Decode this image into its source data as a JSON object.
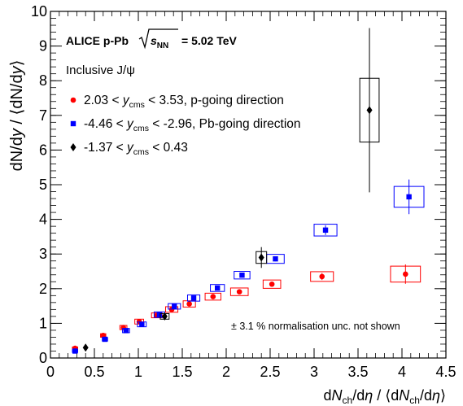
{
  "chart_data": {
    "type": "scatter",
    "title": "",
    "xlabel": "dN_ch/dη / ⟨dN_ch/dη⟩",
    "ylabel": "dN/dy / ⟨dN/dy⟩",
    "xlim": [
      0,
      4.5
    ],
    "ylim": [
      0,
      10
    ],
    "grid": false,
    "x_ticks": [
      "0",
      "0.5",
      "1",
      "1.5",
      "2",
      "2.5",
      "3",
      "3.5",
      "4",
      "4.5"
    ],
    "y_ticks": [
      "0",
      "1",
      "2",
      "3",
      "4",
      "5",
      "6",
      "7",
      "8",
      "9",
      "10"
    ],
    "legend_position": "top-left",
    "series": [
      {
        "name": "2.03 < y_cms < 3.53, p-going direction",
        "color": "#ff0000",
        "marker": "circle",
        "points": [
          {
            "x": 0.28,
            "y": 0.28,
            "stat": 0.05,
            "sx": 0.03,
            "sy": 0.04
          },
          {
            "x": 0.6,
            "y": 0.65,
            "stat": 0.04,
            "sx": 0.03,
            "sy": 0.05
          },
          {
            "x": 0.83,
            "y": 0.88,
            "stat": 0.03,
            "sx": 0.04,
            "sy": 0.06
          },
          {
            "x": 1.01,
            "y": 1.05,
            "stat": 0.03,
            "sx": 0.05,
            "sy": 0.07
          },
          {
            "x": 1.21,
            "y": 1.23,
            "stat": 0.03,
            "sx": 0.06,
            "sy": 0.07
          },
          {
            "x": 1.38,
            "y": 1.4,
            "stat": 0.03,
            "sx": 0.07,
            "sy": 0.08
          },
          {
            "x": 1.58,
            "y": 1.56,
            "stat": 0.03,
            "sx": 0.07,
            "sy": 0.09
          },
          {
            "x": 1.85,
            "y": 1.77,
            "stat": 0.03,
            "sx": 0.09,
            "sy": 0.1
          },
          {
            "x": 2.15,
            "y": 1.91,
            "stat": 0.04,
            "sx": 0.1,
            "sy": 0.11
          },
          {
            "x": 2.52,
            "y": 2.13,
            "stat": 0.05,
            "sx": 0.1,
            "sy": 0.12
          },
          {
            "x": 3.09,
            "y": 2.35,
            "stat": 0.1,
            "sx": 0.13,
            "sy": 0.14
          },
          {
            "x": 4.04,
            "y": 2.42,
            "stat": 0.28,
            "sx": 0.17,
            "sy": 0.23
          }
        ]
      },
      {
        "name": "-4.46 < y_cms < -2.96, Pb-going direction",
        "color": "#0000ff",
        "marker": "square",
        "points": [
          {
            "x": 0.28,
            "y": 0.2,
            "stat": 0.04,
            "sx": 0.03,
            "sy": 0.04
          },
          {
            "x": 0.62,
            "y": 0.54,
            "stat": 0.04,
            "sx": 0.03,
            "sy": 0.05
          },
          {
            "x": 0.86,
            "y": 0.79,
            "stat": 0.03,
            "sx": 0.04,
            "sy": 0.06
          },
          {
            "x": 1.04,
            "y": 0.97,
            "stat": 0.03,
            "sx": 0.05,
            "sy": 0.07
          },
          {
            "x": 1.24,
            "y": 1.25,
            "stat": 0.03,
            "sx": 0.06,
            "sy": 0.08
          },
          {
            "x": 1.41,
            "y": 1.49,
            "stat": 0.03,
            "sx": 0.07,
            "sy": 0.08
          },
          {
            "x": 1.63,
            "y": 1.73,
            "stat": 0.03,
            "sx": 0.07,
            "sy": 0.09
          },
          {
            "x": 1.9,
            "y": 2.02,
            "stat": 0.04,
            "sx": 0.08,
            "sy": 0.1
          },
          {
            "x": 2.18,
            "y": 2.39,
            "stat": 0.05,
            "sx": 0.09,
            "sy": 0.11
          },
          {
            "x": 2.56,
            "y": 2.86,
            "stat": 0.07,
            "sx": 0.1,
            "sy": 0.13
          },
          {
            "x": 3.13,
            "y": 3.69,
            "stat": 0.14,
            "sx": 0.13,
            "sy": 0.17
          },
          {
            "x": 4.08,
            "y": 4.65,
            "stat": 0.5,
            "sx": 0.17,
            "sy": 0.3
          }
        ]
      },
      {
        "name": "-1.37 < y_cms < 0.43",
        "color": "#000000",
        "marker": "diamond",
        "points": [
          {
            "x": 0.4,
            "y": 0.3,
            "stat": 0.1,
            "sx": 0.0,
            "sy": 0.0
          },
          {
            "x": 1.3,
            "y": 1.2,
            "stat": 0.1,
            "sx": 0.05,
            "sy": 0.08
          },
          {
            "x": 2.4,
            "y": 2.9,
            "stat": 0.3,
            "sx": 0.06,
            "sy": 0.17
          },
          {
            "x": 3.63,
            "y": 7.15,
            "stat": 2.37,
            "sx": 0.11,
            "sy": 0.92
          }
        ]
      }
    ],
    "annotations": {
      "header": "ALICE p-Pb",
      "energy": "= 5.02 TeV",
      "energy_symbol": "√s_NN",
      "subtitle": "Inclusive J/ψ",
      "note": "± 3.1 % normalisation unc. not shown"
    },
    "legend": [
      {
        "pre": "2.03 < ",
        "var": "y",
        "sub": "cms",
        "post": " < 3.53, p-going direction",
        "color": "#ff0000",
        "marker": "circle"
      },
      {
        "pre": "-4.46 < ",
        "var": "y",
        "sub": "cms",
        "post": " < -2.96, Pb-going direction",
        "color": "#0000ff",
        "marker": "square"
      },
      {
        "pre": "-1.37 < ",
        "var": "y",
        "sub": "cms",
        "post": " < 0.43",
        "color": "#000000",
        "marker": "diamond"
      }
    ]
  }
}
